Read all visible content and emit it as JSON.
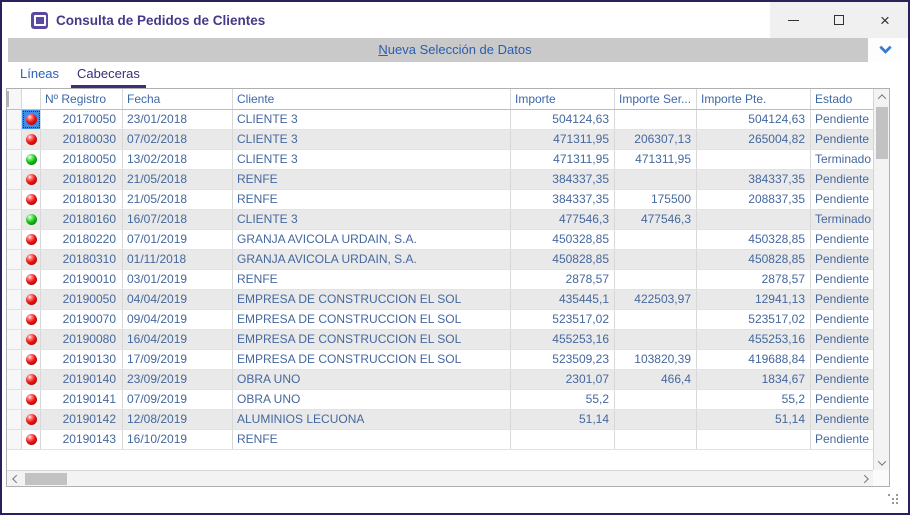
{
  "window": {
    "title": "Consulta de Pedidos de Clientes",
    "border_color": "#29215e",
    "title_color": "#453a86",
    "app_icon": "purple-window-app-icon",
    "controls": [
      "minimize",
      "maximize",
      "close"
    ]
  },
  "selection_bar": {
    "accel": "N",
    "label_rest": "ueva Selección de Datos",
    "full_label": "Nueva Selección de Datos",
    "bar_color": "#c9c9c9",
    "label_color": "#2a5db0",
    "collapse_icon": "chevron-down"
  },
  "tabs": [
    {
      "label": "Líneas",
      "active": false
    },
    {
      "label": "Cabeceras",
      "active": true
    }
  ],
  "table": {
    "headers": {
      "selector": "",
      "status": "",
      "registro": "Nº Registro",
      "fecha": "Fecha",
      "cliente": "Cliente",
      "importe": "Importe",
      "importe_ser": "Importe Ser...",
      "importe_pte": "Importe Pte.",
      "estado": "Estado"
    },
    "status_icon_colors": {
      "red": "#ee1515",
      "green": "#17c217"
    },
    "selected_cell_color": "#3e8ee8",
    "text_color": "#45689e",
    "rows": [
      {
        "status": "red",
        "selected": true,
        "registro": "20170050",
        "fecha": "23/01/2018",
        "cliente": "CLIENTE 3",
        "importe": "504124,63",
        "importe_ser": "",
        "importe_pte": "504124,63",
        "estado": "Pendiente"
      },
      {
        "status": "red",
        "selected": false,
        "registro": "20180030",
        "fecha": "07/02/2018",
        "cliente": "CLIENTE 3",
        "importe": "471311,95",
        "importe_ser": "206307,13",
        "importe_pte": "265004,82",
        "estado": "Pendiente"
      },
      {
        "status": "green",
        "selected": false,
        "registro": "20180050",
        "fecha": "13/02/2018",
        "cliente": "CLIENTE 3",
        "importe": "471311,95",
        "importe_ser": "471311,95",
        "importe_pte": "",
        "estado": "Terminado"
      },
      {
        "status": "red",
        "selected": false,
        "registro": "20180120",
        "fecha": "21/05/2018",
        "cliente": "RENFE",
        "importe": "384337,35",
        "importe_ser": "",
        "importe_pte": "384337,35",
        "estado": "Pendiente"
      },
      {
        "status": "red",
        "selected": false,
        "registro": "20180130",
        "fecha": "21/05/2018",
        "cliente": "RENFE",
        "importe": "384337,35",
        "importe_ser": "175500",
        "importe_pte": "208837,35",
        "estado": "Pendiente"
      },
      {
        "status": "green",
        "selected": false,
        "registro": "20180160",
        "fecha": "16/07/2018",
        "cliente": "CLIENTE 3",
        "importe": "477546,3",
        "importe_ser": "477546,3",
        "importe_pte": "",
        "estado": "Terminado"
      },
      {
        "status": "red",
        "selected": false,
        "registro": "20180220",
        "fecha": "07/01/2019",
        "cliente": "GRANJA AVICOLA URDAIN, S.A.",
        "importe": "450328,85",
        "importe_ser": "",
        "importe_pte": "450328,85",
        "estado": "Pendiente"
      },
      {
        "status": "red",
        "selected": false,
        "registro": "20180310",
        "fecha": "01/11/2018",
        "cliente": "GRANJA AVICOLA URDAIN, S.A.",
        "importe": "450828,85",
        "importe_ser": "",
        "importe_pte": "450828,85",
        "estado": "Pendiente"
      },
      {
        "status": "red",
        "selected": false,
        "registro": "20190010",
        "fecha": "03/01/2019",
        "cliente": "RENFE",
        "importe": "2878,57",
        "importe_ser": "",
        "importe_pte": "2878,57",
        "estado": "Pendiente"
      },
      {
        "status": "red",
        "selected": false,
        "registro": "20190050",
        "fecha": "04/04/2019",
        "cliente": "EMPRESA DE CONSTRUCCION EL SOL",
        "importe": "435445,1",
        "importe_ser": "422503,97",
        "importe_pte": "12941,13",
        "estado": "Pendiente"
      },
      {
        "status": "red",
        "selected": false,
        "registro": "20190070",
        "fecha": "09/04/2019",
        "cliente": "EMPRESA DE CONSTRUCCION EL SOL",
        "importe": "523517,02",
        "importe_ser": "",
        "importe_pte": "523517,02",
        "estado": "Pendiente"
      },
      {
        "status": "red",
        "selected": false,
        "registro": "20190080",
        "fecha": "16/04/2019",
        "cliente": "EMPRESA DE CONSTRUCCION EL SOL",
        "importe": "455253,16",
        "importe_ser": "",
        "importe_pte": "455253,16",
        "estado": "Pendiente"
      },
      {
        "status": "red",
        "selected": false,
        "registro": "20190130",
        "fecha": "17/09/2019",
        "cliente": "EMPRESA DE CONSTRUCCION EL SOL",
        "importe": "523509,23",
        "importe_ser": "103820,39",
        "importe_pte": "419688,84",
        "estado": "Pendiente"
      },
      {
        "status": "red",
        "selected": false,
        "registro": "20190140",
        "fecha": "23/09/2019",
        "cliente": "OBRA UNO",
        "importe": "2301,07",
        "importe_ser": "466,4",
        "importe_pte": "1834,67",
        "estado": "Pendiente"
      },
      {
        "status": "red",
        "selected": false,
        "registro": "20190141",
        "fecha": "07/09/2019",
        "cliente": "OBRA UNO",
        "importe": "55,2",
        "importe_ser": "",
        "importe_pte": "55,2",
        "estado": "Pendiente"
      },
      {
        "status": "red",
        "selected": false,
        "registro": "20190142",
        "fecha": "12/08/2019",
        "cliente": "ALUMINIOS LECUONA",
        "importe": "51,14",
        "importe_ser": "",
        "importe_pte": "51,14",
        "estado": "Pendiente"
      },
      {
        "status": "red",
        "selected": false,
        "registro": "20190143",
        "fecha": "16/10/2019",
        "cliente": "RENFE",
        "importe": "",
        "importe_ser": "",
        "importe_pte": "",
        "estado": "Pendiente"
      }
    ]
  },
  "scrollbars": {
    "vertical": {
      "icons": [
        "chevron-up",
        "chevron-down"
      ]
    },
    "horizontal": {
      "icons": [
        "chevron-left",
        "chevron-right"
      ]
    },
    "resize_grip_icon": "resize-grip-dots"
  }
}
